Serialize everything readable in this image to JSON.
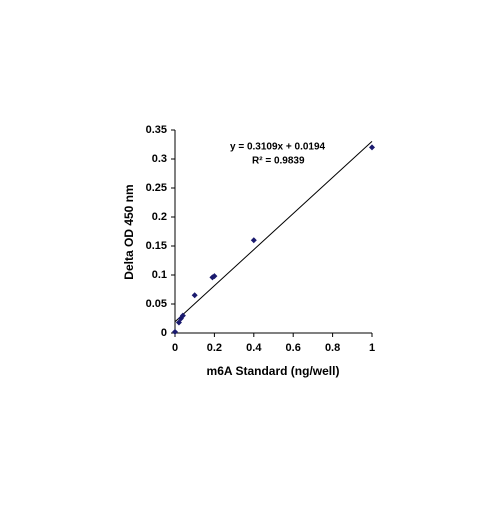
{
  "chart_data": {
    "type": "scatter",
    "x_label": "m6A Standard (ng/well)",
    "y_label": "Delta OD 450 nm",
    "series": [
      {
        "color": "#1a1a6e",
        "x": [
          0,
          0.02,
          0.03,
          0.04,
          0.1,
          0.19,
          0.2,
          0.4,
          1
        ],
        "values": [
          0.002,
          0.018,
          0.025,
          0.03,
          0.065,
          0.096,
          0.098,
          0.16,
          0.32
        ]
      }
    ],
    "trendline": {
      "slope": 0.3109,
      "intercept": 0.0194,
      "color": "#000000"
    },
    "annotations": [
      "y = 0.3109x + 0.0194",
      "R² = 0.9839"
    ],
    "xlim": [
      0,
      1
    ],
    "xticks": [
      0,
      0.2,
      0.4,
      0.6,
      0.8,
      1
    ],
    "ylim": [
      0,
      0.35
    ],
    "yticks": [
      0,
      0.05,
      0.1,
      0.15,
      0.2,
      0.25,
      0.3,
      0.35
    ],
    "grid": false
  }
}
